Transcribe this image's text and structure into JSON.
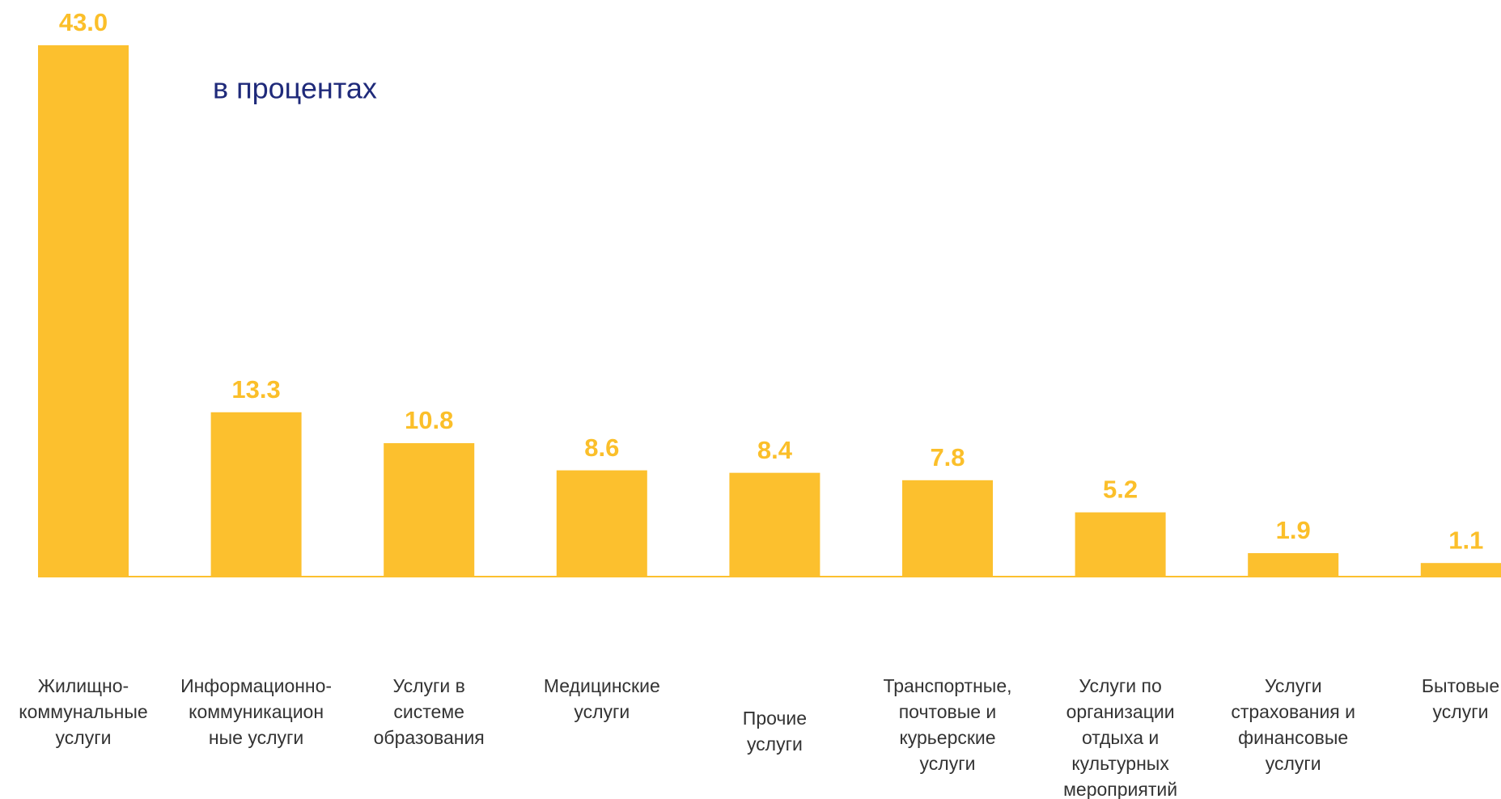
{
  "chart_data": {
    "type": "bar",
    "subtitle": "в процентах",
    "categories": [
      [
        "Жилищно-",
        "коммунальные",
        "услуги"
      ],
      [
        "Информационно-",
        "коммуникацион",
        "ные услуги"
      ],
      [
        "Услуги в",
        "системе",
        "образования"
      ],
      [
        "Медицинские",
        "услуги"
      ],
      [
        "Прочие",
        "услуги"
      ],
      [
        "Транспортные,",
        "почтовые и",
        "курьерские",
        "услуги"
      ],
      [
        "Услуги по",
        "организации",
        "отдыха и",
        "культурных",
        "мероприятий"
      ],
      [
        "Услуги",
        "страхования  и",
        "финансовые",
        "услуги"
      ],
      [
        "Бытовые",
        "услуги"
      ]
    ],
    "values": [
      43.0,
      13.3,
      10.8,
      8.6,
      8.4,
      7.8,
      5.2,
      1.9,
      1.1
    ],
    "value_labels": [
      "43.0",
      "13.3",
      "10.8",
      "8.6",
      "8.4",
      "7.8",
      "5.2",
      "1.9",
      "1.1"
    ],
    "color": "#fcc02e"
  }
}
